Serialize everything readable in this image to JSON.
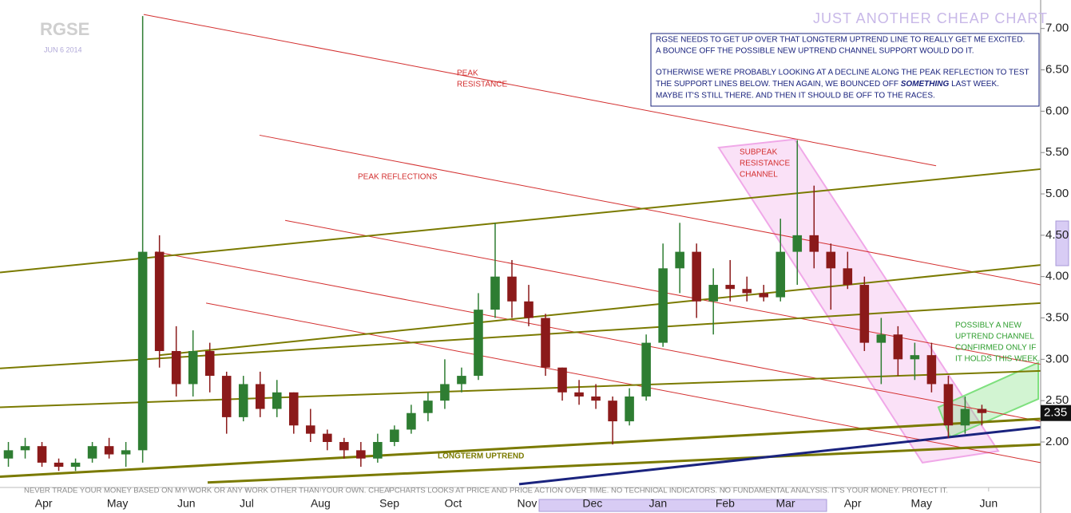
{
  "chart_data": {
    "type": "candlestick",
    "title": "RGSE",
    "subtitle": "JUN 6 2014",
    "brand": "JUST ANOTHER CHEAP CHART",
    "disclaimer": "NEVER TRADE YOUR MONEY BASED ON MY WORK OR ANY WORK OTHER THAN YOUR OWN. CHEAPCHARTS LOOKS AT PRICE AND PRICE ACTION OVER TIME. NO TECHNICAL INDICATORS. NO FUNDAMENTAL ANALYSIS. IT'S YOUR MONEY. PROTECT IT.",
    "commentary": [
      "RGSE NEEDS TO GET UP OVER THAT LONGTERM UPTREND LINE TO REALLY GET ME EXCITED.",
      "A BOUNCE OFF THE POSSIBLE NEW UPTREND CHANNEL SUPPORT WOULD DO IT.",
      "OTHERWISE WE'RE PROBABLY LOOKING AT A DECLINE ALONG THE PEAK REFLECTION TO TEST",
      [
        "THE SUPPORT LINES BELOW. THEN AGAIN, WE BOUNCED OFF ",
        "SOMETHING",
        " LAST WEEK."
      ],
      "MAYBE IT'S STILL THERE. AND THEN IT SHOULD BE OFF TO THE RACES."
    ],
    "annotations": {
      "peak_resistance": [
        "PEAK",
        "RESISTANCE"
      ],
      "peak_reflections": "PEAK REFLECTIONS",
      "subpeak_channel": [
        "SUBPEAK",
        "RESISTANCE",
        "CHANNEL"
      ],
      "new_channel": [
        "POSSIBLY A NEW",
        "UPTREND CHANNEL",
        "CONFIRMED ONLY IF",
        "IT HOLDS THIS WEEK."
      ],
      "longterm_uptrend": "LONGTERM UPTREND"
    },
    "up_color": "#2e7d32",
    "down_color": "#8b1a1a",
    "open": [
      1.8,
      1.9,
      1.95,
      1.75,
      1.7,
      1.8,
      1.95,
      1.85,
      1.9,
      4.3,
      3.1,
      2.7,
      3.1,
      2.8,
      2.3,
      2.7,
      2.4,
      2.6,
      2.2,
      2.1,
      2.0,
      1.9,
      1.8,
      2.0,
      2.15,
      2.35,
      2.5,
      2.7,
      2.8,
      3.6,
      4.0,
      3.7,
      3.5,
      2.9,
      2.6,
      2.55,
      2.5,
      2.25,
      2.55,
      3.2,
      4.1,
      4.3,
      3.7,
      3.9,
      3.85,
      3.8,
      3.75,
      4.3,
      4.5,
      4.3,
      4.1,
      3.9,
      3.2,
      3.3,
      3.0,
      3.05,
      2.7,
      2.2,
      2.4
    ],
    "high": [
      2.0,
      2.05,
      2.0,
      1.8,
      1.8,
      2.0,
      2.05,
      2.0,
      7.15,
      4.5,
      3.4,
      3.35,
      3.2,
      2.85,
      2.8,
      2.85,
      2.75,
      2.6,
      2.4,
      2.15,
      2.05,
      2.0,
      2.1,
      2.2,
      2.45,
      2.6,
      3.0,
      2.9,
      3.8,
      4.65,
      4.2,
      3.9,
      3.55,
      2.9,
      2.75,
      2.7,
      2.55,
      2.65,
      3.3,
      4.4,
      4.65,
      4.4,
      4.1,
      4.2,
      4.0,
      3.9,
      4.7,
      5.65,
      5.1,
      4.4,
      4.3,
      4.0,
      3.5,
      3.4,
      3.2,
      3.2,
      2.8,
      2.55,
      2.45
    ],
    "low": [
      1.7,
      1.8,
      1.7,
      1.65,
      1.65,
      1.75,
      1.8,
      1.7,
      1.75,
      2.9,
      2.55,
      2.55,
      2.6,
      2.1,
      2.25,
      2.3,
      2.3,
      2.1,
      2.0,
      1.9,
      1.8,
      1.7,
      1.75,
      1.95,
      2.1,
      2.25,
      2.4,
      2.6,
      2.75,
      3.5,
      3.5,
      3.4,
      2.8,
      2.5,
      2.45,
      2.4,
      1.97,
      2.2,
      2.5,
      3.15,
      3.8,
      3.5,
      3.3,
      3.7,
      3.7,
      3.7,
      3.7,
      3.9,
      4.1,
      3.6,
      3.85,
      3.1,
      2.7,
      2.8,
      2.75,
      2.6,
      2.05,
      2.1,
      2.2
    ],
    "close": [
      1.9,
      1.95,
      1.75,
      1.7,
      1.75,
      1.95,
      1.85,
      1.9,
      4.3,
      3.1,
      2.7,
      3.1,
      2.8,
      2.3,
      2.7,
      2.4,
      2.6,
      2.2,
      2.1,
      2.0,
      1.9,
      1.8,
      2.0,
      2.15,
      2.35,
      2.5,
      2.7,
      2.8,
      3.6,
      4.0,
      3.7,
      3.5,
      2.9,
      2.6,
      2.55,
      2.5,
      2.25,
      2.55,
      3.2,
      4.1,
      4.3,
      3.7,
      3.9,
      3.85,
      3.8,
      3.75,
      4.3,
      4.5,
      4.3,
      4.1,
      3.9,
      3.2,
      3.3,
      3.0,
      3.05,
      2.7,
      2.2,
      2.4,
      2.35
    ],
    "last_price": 2.35,
    "xlim": [
      -0.5,
      61.5
    ],
    "xticks": [
      {
        "value": 2.1,
        "label": "Apr"
      },
      {
        "value": 6.5,
        "label": "May"
      },
      {
        "value": 10.6,
        "label": "Jun"
      },
      {
        "value": 14.2,
        "label": "Jul"
      },
      {
        "value": 18.6,
        "label": "Aug"
      },
      {
        "value": 22.7,
        "label": "Sep"
      },
      {
        "value": 26.5,
        "label": "Oct"
      },
      {
        "value": 30.9,
        "label": "Nov"
      },
      {
        "value": 34.8,
        "label": "Dec"
      },
      {
        "value": 38.7,
        "label": "Jan"
      },
      {
        "value": 42.7,
        "label": "Feb"
      },
      {
        "value": 46.3,
        "label": "Mar"
      },
      {
        "value": 50.3,
        "label": "Apr"
      },
      {
        "value": 54.4,
        "label": "May"
      },
      {
        "value": 58.4,
        "label": "Jun"
      }
    ],
    "ylim": [
      1.45,
      7.2
    ],
    "yticks": [
      {
        "value": 2,
        "label": "2.00"
      },
      {
        "value": 2.5,
        "label": "2.50"
      },
      {
        "value": 3,
        "label": "3.00"
      },
      {
        "value": 3.5,
        "label": "3.50"
      },
      {
        "value": 4,
        "label": "4.00"
      },
      {
        "value": 4.5,
        "label": "4.50"
      },
      {
        "value": 5,
        "label": "5.00"
      },
      {
        "value": 5.5,
        "label": "5.50"
      },
      {
        "value": 6,
        "label": "6.00"
      },
      {
        "value": 6.5,
        "label": "6.50"
      },
      {
        "value": 7,
        "label": "7.00"
      }
    ],
    "trendlines": [
      {
        "color": "#d32f2f",
        "width": 1,
        "points": [
          [
            8.06,
            7.17
          ],
          [
            55.27,
            5.34
          ]
        ]
      },
      {
        "color": "#d32f2f",
        "width": 1,
        "points": [
          [
            14.96,
            5.71
          ],
          [
            61.5,
            3.9
          ]
        ]
      },
      {
        "color": "#d32f2f",
        "width": 1,
        "points": [
          [
            16.49,
            4.68
          ],
          [
            61.5,
            2.94
          ]
        ]
      },
      {
        "color": "#d32f2f",
        "width": 1,
        "points": [
          [
            8.78,
            4.3
          ],
          [
            61.5,
            2.25
          ]
        ]
      },
      {
        "color": "#d32f2f",
        "width": 1,
        "points": [
          [
            11.78,
            3.68
          ],
          [
            61.5,
            1.75
          ]
        ]
      },
      {
        "color": "#7a7a00",
        "width": 2,
        "points": [
          [
            -0.5,
            4.05
          ],
          [
            61.5,
            5.3
          ]
        ]
      },
      {
        "color": "#7a7a00",
        "width": 2,
        "points": [
          [
            9.02,
            3.05
          ],
          [
            61.5,
            4.14
          ]
        ]
      },
      {
        "color": "#7a7a00",
        "width": 2,
        "points": [
          [
            -0.5,
            2.89
          ],
          [
            61.5,
            3.68
          ]
        ]
      },
      {
        "color": "#7a7a00",
        "width": 2,
        "points": [
          [
            -0.5,
            2.42
          ],
          [
            61.5,
            2.86
          ]
        ]
      },
      {
        "color": "#7a7a00",
        "width": 3,
        "points": [
          [
            -0.5,
            1.58
          ],
          [
            61.5,
            2.28
          ]
        ]
      },
      {
        "color": "#7a7a00",
        "width": 3,
        "points": [
          [
            11.87,
            1.51
          ],
          [
            61.5,
            1.97
          ]
        ]
      },
      {
        "color": "#1a237e",
        "width": 3,
        "points": [
          [
            30.43,
            1.49
          ],
          [
            61.5,
            2.18
          ]
        ]
      }
    ],
    "channels": [
      {
        "color": "#f0a8e8",
        "points": [
          [
            42.32,
            5.56
          ],
          [
            46.84,
            5.66
          ],
          [
            58.98,
            1.89
          ],
          [
            54.46,
            1.75
          ]
        ]
      },
      {
        "color": "#7ee07e",
        "points": [
          [
            55.41,
            2.42
          ],
          [
            61.36,
            2.96
          ],
          [
            61.36,
            2.52
          ],
          [
            56.12,
            2.06
          ]
        ]
      }
    ]
  }
}
